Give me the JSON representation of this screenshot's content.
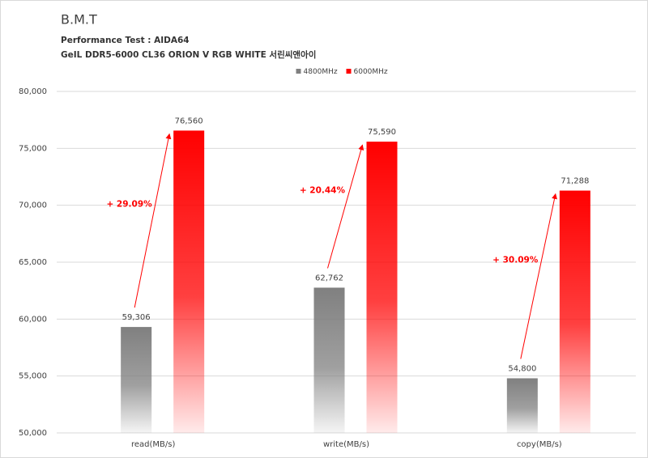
{
  "chart_data": {
    "type": "bar",
    "title": "B.M.T",
    "subtitle": "Performance Test : AIDA64",
    "product": "GeIL DDR5-6000 CL36 ORION V RGB WHITE 서린씨앤아이",
    "categories": [
      "read(MB/s)",
      "write(MB/s)",
      "copy(MB/s)"
    ],
    "series": [
      {
        "name": "4800MHz",
        "color": "#808080",
        "values": [
          59306,
          62762,
          54800
        ],
        "value_labels": [
          "59,306",
          "62,762",
          "54,800"
        ]
      },
      {
        "name": "6000MHz",
        "color": "#ff0000",
        "values": [
          76560,
          75590,
          71288
        ],
        "value_labels": [
          "76,560",
          "75,590",
          "71,288"
        ]
      }
    ],
    "annotations": [
      "+ 29.09%",
      "+ 20.44%",
      "+ 30.09%"
    ],
    "ylim": [
      50000,
      80000
    ],
    "yticks": [
      {
        "value": 50000,
        "label": "50,000"
      },
      {
        "value": 55000,
        "label": "55,000"
      },
      {
        "value": 60000,
        "label": "60,000"
      },
      {
        "value": 65000,
        "label": "65,000"
      },
      {
        "value": 70000,
        "label": "70,000"
      },
      {
        "value": 75000,
        "label": "75,000"
      },
      {
        "value": 80000,
        "label": "80,000"
      }
    ],
    "grid": true,
    "legend": "top"
  }
}
